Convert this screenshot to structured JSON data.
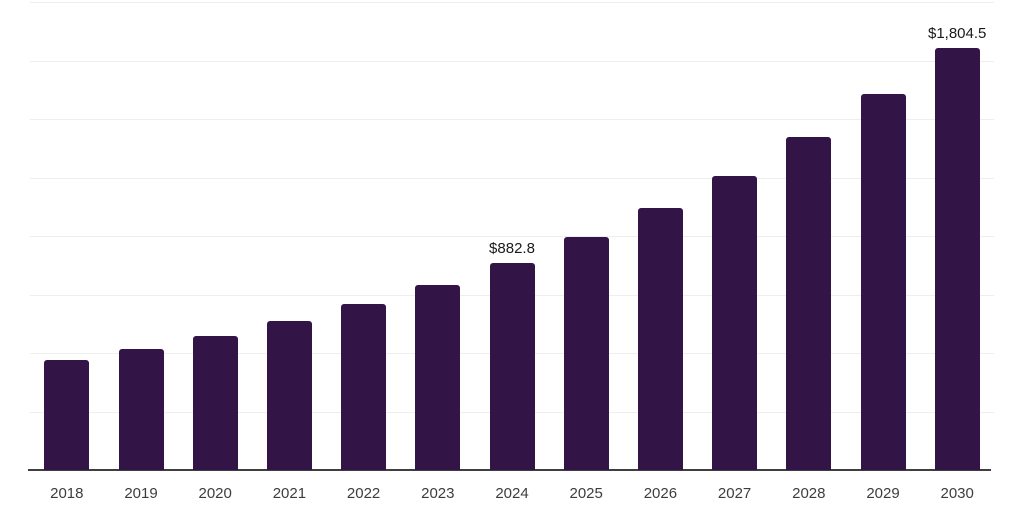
{
  "chart_data": {
    "type": "bar",
    "title": "",
    "xlabel": "",
    "ylabel": "",
    "categories": [
      "2018",
      "2019",
      "2020",
      "2021",
      "2022",
      "2023",
      "2024",
      "2025",
      "2026",
      "2027",
      "2028",
      "2029",
      "2030"
    ],
    "values": [
      470,
      517,
      572,
      637,
      708,
      790,
      882.8,
      997,
      1119,
      1258,
      1422,
      1607,
      1804.5
    ],
    "data_labels": [
      "",
      "",
      "",
      "",
      "",
      "",
      "$882.8",
      "",
      "",
      "",
      "",
      "",
      "$1,804.5"
    ],
    "ylim": [
      0,
      2000
    ],
    "gridline_step": 250,
    "grid": "horizontal-only",
    "legend": "none",
    "y_axis_tick_labels": "none",
    "colors": {
      "bar": "#331447",
      "background": "#ffffff",
      "gridline": "#eeeeee",
      "axis_line": "#3f3f3f",
      "tick_label": "#3d3d3d",
      "data_label": "#1a1a1a"
    }
  }
}
